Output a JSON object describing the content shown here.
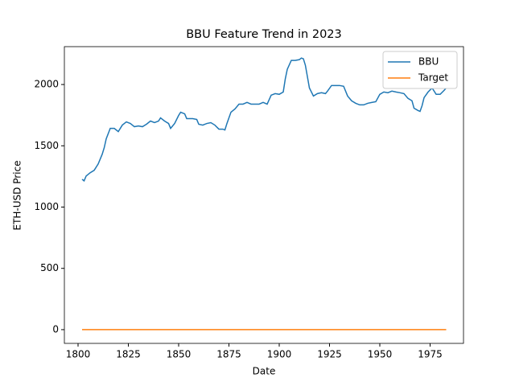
{
  "chart_data": {
    "type": "line",
    "title": "BBU Feature Trend in 2023",
    "x_label": "Date",
    "y_label": "ETH-USD Price",
    "x": [
      1802,
      1803,
      1804,
      1806,
      1808,
      1810,
      1812,
      1813,
      1814,
      1816,
      1818,
      1820,
      1822,
      1824,
      1826,
      1828,
      1830,
      1832,
      1834,
      1836,
      1838,
      1840,
      1841,
      1843,
      1845,
      1846,
      1848,
      1850,
      1851,
      1853,
      1854,
      1857,
      1859,
      1860,
      1862,
      1864,
      1866,
      1868,
      1870,
      1872,
      1873,
      1874,
      1876,
      1878,
      1880,
      1882,
      1884,
      1886,
      1888,
      1890,
      1892,
      1894,
      1896,
      1898,
      1900,
      1902,
      1903,
      1904,
      1906,
      1908,
      1910,
      1911,
      1912,
      1913,
      1915,
      1917,
      1919,
      1921,
      1923,
      1924,
      1926,
      1928,
      1930,
      1932,
      1934,
      1936,
      1938,
      1940,
      1942,
      1944,
      1946,
      1948,
      1950,
      1952,
      1954,
      1956,
      1958,
      1960,
      1962,
      1964,
      1966,
      1967,
      1969,
      1970,
      1971,
      1972,
      1974,
      1976,
      1978,
      1980,
      1982,
      1983
    ],
    "series": [
      {
        "name": "BBU",
        "color": "#1f77b4",
        "values": [
          1227,
          1214,
          1253,
          1280,
          1300,
          1352,
          1431,
          1484,
          1557,
          1642,
          1642,
          1616,
          1669,
          1695,
          1682,
          1656,
          1662,
          1656,
          1676,
          1702,
          1689,
          1702,
          1728,
          1702,
          1682,
          1642,
          1682,
          1748,
          1774,
          1761,
          1722,
          1722,
          1715,
          1676,
          1669,
          1682,
          1689,
          1669,
          1636,
          1636,
          1629,
          1682,
          1774,
          1801,
          1840,
          1840,
          1854,
          1840,
          1840,
          1840,
          1854,
          1840,
          1913,
          1926,
          1920,
          1939,
          2045,
          2124,
          2197,
          2197,
          2203,
          2216,
          2210,
          2157,
          1972,
          1906,
          1926,
          1933,
          1926,
          1946,
          1992,
          1992,
          1992,
          1986,
          1906,
          1867,
          1847,
          1834,
          1834,
          1847,
          1854,
          1860,
          1920,
          1939,
          1933,
          1946,
          1939,
          1933,
          1926,
          1887,
          1867,
          1807,
          1788,
          1781,
          1827,
          1893,
          1939,
          1972,
          1920,
          1920,
          1953,
          1972
        ]
      },
      {
        "name": "Target",
        "color": "#ff7f0e",
        "values": [
          0,
          0,
          0,
          0,
          0,
          0,
          0,
          0,
          0,
          0,
          0,
          0,
          0,
          0,
          0,
          0,
          0,
          0,
          0,
          0,
          0,
          0,
          0,
          0,
          0,
          0,
          0,
          0,
          0,
          0,
          0,
          0,
          0,
          0,
          0,
          0,
          0,
          0,
          0,
          0,
          0,
          0,
          0,
          0,
          0,
          0,
          0,
          0,
          0,
          0,
          0,
          0,
          0,
          0,
          0,
          0,
          0,
          0,
          0,
          0,
          0,
          0,
          0,
          0,
          0,
          0,
          0,
          0,
          0,
          0,
          0,
          0,
          0,
          0,
          0,
          0,
          0,
          0,
          0,
          0,
          0,
          0,
          0,
          0,
          0,
          0,
          0,
          0,
          0,
          0,
          0,
          0,
          0,
          0,
          0,
          0,
          0,
          0,
          0,
          0,
          0,
          0
        ]
      }
    ],
    "xlim": [
      1793.2,
      1991.6
    ],
    "xticks": [
      1800,
      1825,
      1850,
      1875,
      1900,
      1925,
      1950,
      1975
    ],
    "ylim": [
      -112,
      2309
    ],
    "yticks": [
      0,
      500,
      1000,
      1500,
      2000
    ],
    "grid": false,
    "legend": "upper right"
  }
}
